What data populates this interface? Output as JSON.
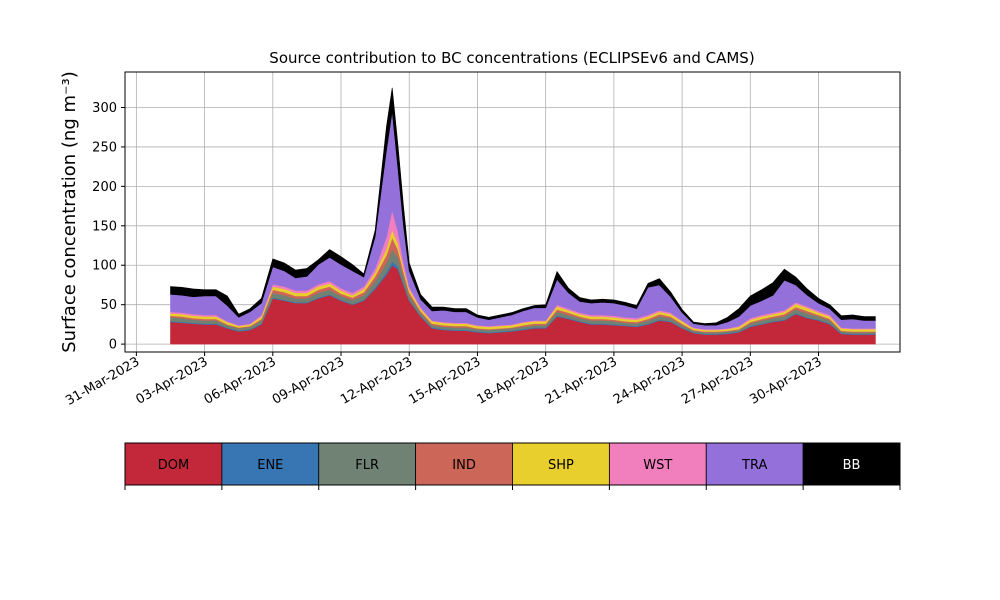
{
  "chart_data": {
    "type": "area",
    "title": "Source contribution to BC concentrations (ECLIPSEv6 and CAMS)",
    "ylabel": "Surface concentration (ng m⁻³)",
    "xlabel": "",
    "ylim": [
      -10,
      345
    ],
    "yticks": [
      0,
      50,
      100,
      150,
      200,
      250,
      300
    ],
    "xlim": [
      "2023-03-30T12:00",
      "2023-05-03T14:00"
    ],
    "xticks": [
      "2023-03-31",
      "2023-04-03",
      "2023-04-06",
      "2023-04-09",
      "2023-04-12",
      "2023-04-15",
      "2023-04-18",
      "2023-04-21",
      "2023-04-24",
      "2023-04-27",
      "2023-04-30"
    ],
    "xtick_labels": [
      "31-Mar-2023",
      "03-Apr-2023",
      "06-Apr-2023",
      "09-Apr-2023",
      "12-Apr-2023",
      "15-Apr-2023",
      "18-Apr-2023",
      "21-Apr-2023",
      "24-Apr-2023",
      "27-Apr-2023",
      "30-Apr-2023"
    ],
    "grid": true,
    "stacked": true,
    "x": [
      "2023-04-01T12:00",
      "2023-04-02T00:00",
      "2023-04-02T12:00",
      "2023-04-03T00:00",
      "2023-04-03T12:00",
      "2023-04-04T00:00",
      "2023-04-04T12:00",
      "2023-04-05T00:00",
      "2023-04-05T12:00",
      "2023-04-06T00:00",
      "2023-04-06T12:00",
      "2023-04-07T00:00",
      "2023-04-07T12:00",
      "2023-04-08T00:00",
      "2023-04-08T12:00",
      "2023-04-09T00:00",
      "2023-04-09T12:00",
      "2023-04-10T00:00",
      "2023-04-10T12:00",
      "2023-04-11T00:00",
      "2023-04-11T06:00",
      "2023-04-11T12:00",
      "2023-04-11T18:00",
      "2023-04-12T00:00",
      "2023-04-12T12:00",
      "2023-04-13T00:00",
      "2023-04-13T12:00",
      "2023-04-14T00:00",
      "2023-04-14T12:00",
      "2023-04-15T00:00",
      "2023-04-15T12:00",
      "2023-04-16T00:00",
      "2023-04-16T12:00",
      "2023-04-17T00:00",
      "2023-04-17T12:00",
      "2023-04-18T00:00",
      "2023-04-18T12:00",
      "2023-04-19T00:00",
      "2023-04-19T12:00",
      "2023-04-20T00:00",
      "2023-04-20T12:00",
      "2023-04-21T00:00",
      "2023-04-21T12:00",
      "2023-04-22T00:00",
      "2023-04-22T12:00",
      "2023-04-23T00:00",
      "2023-04-23T12:00",
      "2023-04-24T00:00",
      "2023-04-24T12:00",
      "2023-04-25T00:00",
      "2023-04-25T12:00",
      "2023-04-26T00:00",
      "2023-04-26T12:00",
      "2023-04-27T00:00",
      "2023-04-27T12:00",
      "2023-04-28T00:00",
      "2023-04-28T12:00",
      "2023-04-29T00:00",
      "2023-04-29T12:00",
      "2023-04-30T00:00",
      "2023-04-30T12:00",
      "2023-05-01T00:00",
      "2023-05-01T12:00",
      "2023-05-02T00:00",
      "2023-05-02T12:00"
    ],
    "series": [
      {
        "name": "DOM",
        "color": "#c3283a",
        "values": [
          28,
          27,
          26,
          25,
          25,
          20,
          16,
          18,
          25,
          58,
          55,
          52,
          52,
          58,
          62,
          55,
          50,
          55,
          70,
          88,
          100,
          95,
          75,
          55,
          35,
          20,
          18,
          17,
          17,
          15,
          14,
          15,
          16,
          18,
          20,
          20,
          35,
          32,
          28,
          25,
          25,
          24,
          23,
          22,
          25,
          30,
          28,
          20,
          14,
          12,
          12,
          13,
          15,
          22,
          25,
          28,
          30,
          38,
          33,
          30,
          25,
          13,
          12,
          12,
          12
        ]
      },
      {
        "name": "ENE",
        "color": "#3876b3",
        "values": [
          1,
          1,
          1,
          1,
          1,
          1,
          1,
          1,
          1,
          1,
          1,
          1,
          1,
          1,
          1,
          1,
          1,
          1,
          2,
          3,
          5,
          3,
          2,
          1,
          1,
          1,
          1,
          1,
          1,
          1,
          1,
          1,
          1,
          1,
          1,
          1,
          1,
          1,
          1,
          1,
          1,
          1,
          1,
          1,
          1,
          1,
          1,
          1,
          1,
          1,
          1,
          1,
          1,
          1,
          1,
          1,
          1,
          1,
          1,
          1,
          1,
          1,
          1,
          1,
          1
        ]
      },
      {
        "name": "FLR",
        "color": "#6f8273",
        "values": [
          5,
          5,
          4,
          4,
          4,
          3,
          3,
          3,
          4,
          6,
          6,
          5,
          5,
          6,
          6,
          5,
          5,
          6,
          8,
          12,
          15,
          12,
          9,
          6,
          4,
          3,
          3,
          3,
          3,
          3,
          3,
          3,
          3,
          3,
          3,
          3,
          5,
          4,
          4,
          4,
          4,
          4,
          3,
          3,
          4,
          4,
          4,
          3,
          2,
          2,
          2,
          2,
          2,
          3,
          4,
          4,
          4,
          5,
          5,
          4,
          4,
          2,
          2,
          2,
          2
        ]
      },
      {
        "name": "IND",
        "color": "#cc6658",
        "values": [
          2,
          2,
          2,
          2,
          2,
          1,
          1,
          1,
          2,
          4,
          4,
          3,
          3,
          4,
          4,
          3,
          3,
          4,
          6,
          10,
          15,
          10,
          6,
          4,
          2,
          2,
          2,
          2,
          2,
          1,
          1,
          1,
          1,
          2,
          2,
          2,
          3,
          3,
          2,
          2,
          2,
          2,
          2,
          2,
          2,
          3,
          2,
          2,
          1,
          1,
          1,
          1,
          1,
          2,
          2,
          2,
          3,
          3,
          3,
          2,
          2,
          1,
          1,
          1,
          1
        ]
      },
      {
        "name": "SHP",
        "color": "#e8cf2d",
        "values": [
          3,
          3,
          3,
          3,
          3,
          3,
          2,
          2,
          3,
          4,
          4,
          4,
          4,
          4,
          4,
          4,
          3,
          4,
          5,
          8,
          10,
          8,
          5,
          4,
          3,
          3,
          3,
          3,
          3,
          3,
          3,
          3,
          3,
          3,
          3,
          3,
          4,
          3,
          3,
          3,
          3,
          3,
          3,
          3,
          3,
          3,
          3,
          3,
          2,
          2,
          2,
          2,
          3,
          3,
          3,
          3,
          3,
          4,
          4,
          3,
          3,
          3,
          3,
          3,
          3
        ]
      },
      {
        "name": "WST",
        "color": "#f17fbd",
        "values": [
          2,
          2,
          2,
          2,
          2,
          1,
          1,
          1,
          2,
          3,
          3,
          3,
          3,
          3,
          3,
          3,
          3,
          3,
          5,
          15,
          25,
          15,
          8,
          3,
          2,
          1,
          1,
          1,
          1,
          1,
          1,
          1,
          1,
          1,
          1,
          1,
          2,
          2,
          2,
          2,
          2,
          2,
          2,
          2,
          2,
          2,
          2,
          1,
          1,
          1,
          1,
          1,
          1,
          2,
          2,
          2,
          2,
          2,
          2,
          2,
          2,
          1,
          1,
          1,
          1
        ]
      },
      {
        "name": "TRA",
        "color": "#9470db",
        "values": [
          22,
          22,
          22,
          24,
          24,
          20,
          10,
          15,
          15,
          22,
          20,
          16,
          18,
          25,
          30,
          30,
          28,
          12,
          40,
          110,
          125,
          80,
          45,
          20,
          10,
          12,
          15,
          14,
          14,
          10,
          8,
          10,
          12,
          14,
          16,
          16,
          32,
          20,
          14,
          15,
          16,
          16,
          15,
          12,
          35,
          32,
          20,
          10,
          5,
          5,
          5,
          8,
          12,
          16,
          18,
          22,
          38,
          22,
          14,
          10,
          8,
          10,
          12,
          10,
          10
        ]
      },
      {
        "name": "BB",
        "color": "#000000",
        "values": [
          10,
          10,
          10,
          8,
          8,
          12,
          4,
          4,
          6,
          10,
          10,
          10,
          10,
          6,
          10,
          10,
          8,
          4,
          8,
          30,
          30,
          30,
          25,
          10,
          6,
          5,
          4,
          4,
          4,
          3,
          3,
          3,
          3,
          3,
          3,
          4,
          10,
          6,
          5,
          4,
          4,
          4,
          4,
          4,
          5,
          8,
          6,
          4,
          2,
          2,
          3,
          6,
          10,
          12,
          14,
          16,
          14,
          10,
          8,
          6,
          5,
          5,
          5,
          5,
          5
        ]
      }
    ],
    "legend": {
      "placement": "below",
      "entries": [
        "DOM",
        "ENE",
        "FLR",
        "IND",
        "SHP",
        "WST",
        "TRA",
        "BB"
      ]
    }
  }
}
